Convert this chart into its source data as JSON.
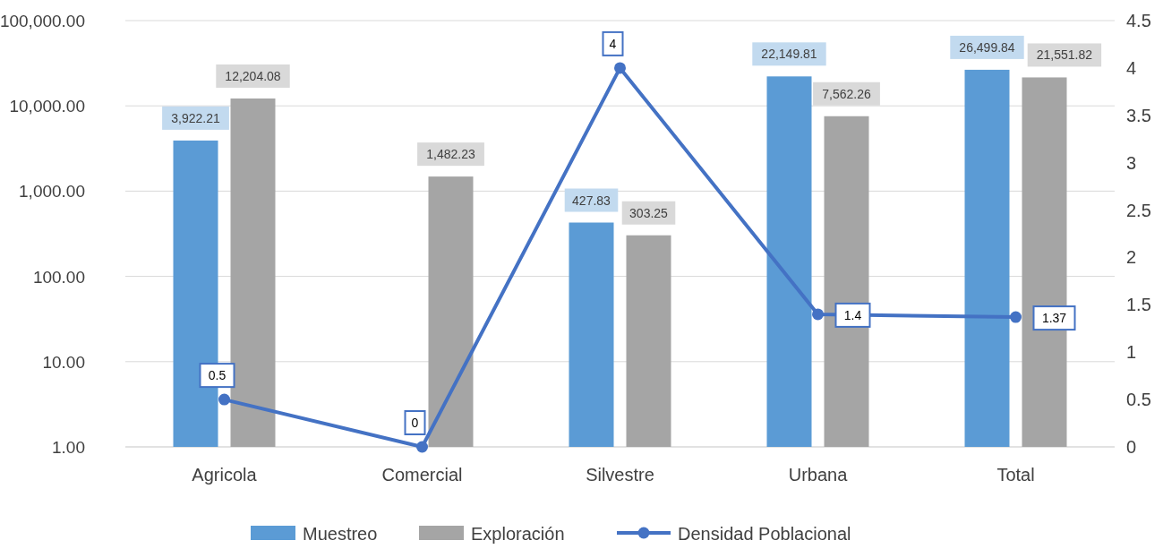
{
  "chart_data": {
    "type": "bar",
    "categories": [
      "Agricola",
      "Comercial",
      "Silvestre",
      "Urbana",
      "Total"
    ],
    "series": [
      {
        "name": "Muestreo",
        "color": "#5b9bd5",
        "values": [
          3922.21,
          null,
          427.83,
          22149.81,
          26499.84
        ],
        "value_labels": [
          "3,922.21",
          null,
          "427.83",
          "22,149.81",
          "26,499.84"
        ]
      },
      {
        "name": "Exploración",
        "color": "#a5a5a5",
        "values": [
          12204.08,
          1482.23,
          303.25,
          7562.26,
          21551.82
        ],
        "value_labels": [
          "12,204.08",
          "1,482.23",
          "303.25",
          "7,562.26",
          "21,551.82"
        ]
      },
      {
        "name": "Densidad Poblacional",
        "type": "line",
        "axis": "y2",
        "color": "#4472c4",
        "marker": "circle",
        "values": [
          0.5,
          0,
          4,
          1.4,
          1.37
        ],
        "value_labels": [
          "0.5",
          "0",
          "4",
          "1.4",
          "1.37"
        ]
      }
    ],
    "log": "y",
    "ylim": [
      1,
      100000
    ],
    "yticks": [
      {
        "value": 1,
        "label": "1.00"
      },
      {
        "value": 10,
        "label": "10.00"
      },
      {
        "value": 100,
        "label": "100.00"
      },
      {
        "value": 1000,
        "label": "1,000.00"
      },
      {
        "value": 10000,
        "label": "10,000.00"
      },
      {
        "value": 100000,
        "label": "100,000.00"
      }
    ],
    "y2lim": [
      0,
      4.5
    ],
    "y2ticks": [
      0,
      0.5,
      1,
      1.5,
      2,
      2.5,
      3,
      3.5,
      4,
      4.5
    ],
    "grid": "y",
    "legend": "bottom"
  }
}
